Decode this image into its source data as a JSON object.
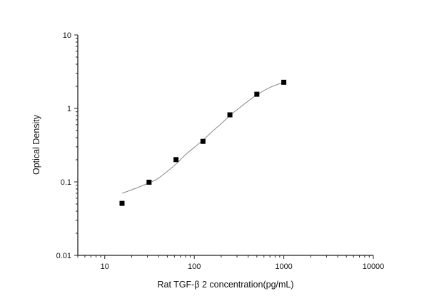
{
  "chart_data": {
    "type": "scatter",
    "title": "",
    "xlabel": "Rat TGF-β 2 concentration(pg/mL)",
    "ylabel": "Optical Density",
    "xscale": "log",
    "yscale": "log",
    "xlim": [
      5,
      10000
    ],
    "ylim": [
      0.01,
      10
    ],
    "x_ticks": [
      "10",
      "100",
      "1000",
      "10000"
    ],
    "y_ticks": [
      "0.01",
      "0.1",
      "1",
      "10"
    ],
    "grid": false,
    "legend": "none",
    "colors": {
      "points": "#000000",
      "curve": "#8a8a8a",
      "axis": "#222222"
    },
    "points": {
      "x": [
        15.6,
        31.25,
        62.5,
        125,
        250,
        500,
        1000
      ],
      "y": [
        0.051,
        0.099,
        0.201,
        0.356,
        0.818,
        1.56,
        2.27
      ]
    },
    "fit_curve": {
      "x": [
        15.6,
        20,
        31.25,
        40,
        62.5,
        80,
        125,
        160,
        200,
        250,
        320,
        400,
        500,
        700,
        1000
      ],
      "y": [
        0.07,
        0.078,
        0.097,
        0.113,
        0.175,
        0.235,
        0.37,
        0.49,
        0.62,
        0.8,
        1.02,
        1.26,
        1.53,
        1.93,
        2.27
      ]
    }
  }
}
